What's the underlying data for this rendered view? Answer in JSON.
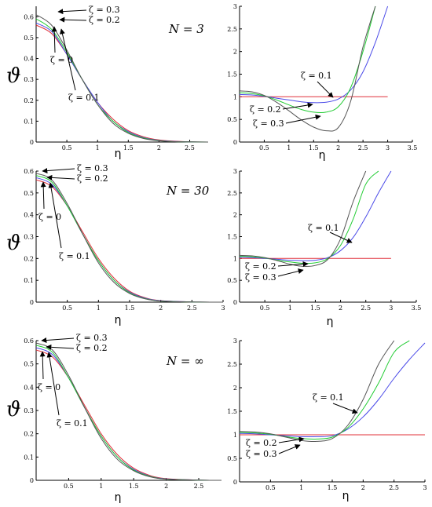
{
  "figure": {
    "y_label": "ϑ",
    "x_label": "η",
    "rows": [
      {
        "n_label": "N = 3"
      },
      {
        "n_label": "N = 30"
      },
      {
        "n_label": "N = ∞"
      }
    ]
  },
  "colors": {
    "zeta_0": "#e0303a",
    "zeta_0.1": "#4a4ae8",
    "zeta_0.2": "#22cc33",
    "zeta_0.3": "#555555"
  },
  "chart_data": [
    {
      "type": "line",
      "panel": "N = 3 left",
      "title": "",
      "xlabel": "η",
      "ylabel": "ϑ",
      "xlim": [
        0,
        2.8
      ],
      "ylim": [
        0,
        0.65
      ],
      "x_ticks": [
        0.5,
        1,
        1.5,
        2,
        2.5
      ],
      "y_ticks": [
        0,
        0.1,
        0.2,
        0.3,
        0.4,
        0.5,
        0.6
      ],
      "x": [
        0,
        0.25,
        0.5,
        0.75,
        1,
        1.25,
        1.5,
        1.75,
        2,
        2.25,
        2.5,
        2.8
      ],
      "series": [
        {
          "name": "ζ = 0",
          "values": [
            0.56,
            0.52,
            0.42,
            0.3,
            0.19,
            0.11,
            0.055,
            0.025,
            0.01,
            0.004,
            0.001,
            0
          ]
        },
        {
          "name": "ζ = 0.1",
          "values": [
            0.57,
            0.53,
            0.42,
            0.3,
            0.19,
            0.1,
            0.05,
            0.021,
            0.008,
            0.003,
            0.001,
            0
          ]
        },
        {
          "name": "ζ = 0.2",
          "values": [
            0.59,
            0.54,
            0.43,
            0.3,
            0.18,
            0.1,
            0.046,
            0.019,
            0.007,
            0.002,
            0.001,
            0
          ]
        },
        {
          "name": "ζ = 0.3",
          "values": [
            0.61,
            0.56,
            0.44,
            0.3,
            0.18,
            0.09,
            0.042,
            0.017,
            0.006,
            0.002,
            0.001,
            0
          ]
        }
      ],
      "annotations": [
        "ζ = 0.3",
        "ζ = 0.2",
        "ζ = 0",
        "ζ = 0.1"
      ]
    },
    {
      "type": "line",
      "panel": "N = 3 right",
      "title": "",
      "xlabel": "η",
      "ylabel": "",
      "xlim": [
        0,
        3.5
      ],
      "ylim": [
        0,
        3
      ],
      "x_ticks": [
        0.5,
        1,
        1.5,
        2,
        2.5,
        3,
        3.5
      ],
      "y_ticks": [
        0,
        0.5,
        1,
        1.5,
        2,
        2.5,
        3
      ],
      "x": [
        0,
        0.25,
        0.5,
        0.75,
        1,
        1.25,
        1.5,
        1.75,
        2,
        2.25,
        2.5,
        2.75,
        3
      ],
      "series": [
        {
          "name": "ζ = 0",
          "values": [
            1,
            1,
            1,
            1,
            1,
            1,
            1,
            1,
            1,
            1,
            1,
            1,
            1
          ]
        },
        {
          "name": "ζ = 0.1",
          "values": [
            1.05,
            1.04,
            1.01,
            0.97,
            0.93,
            0.89,
            0.87,
            0.88,
            0.95,
            1.15,
            1.55,
            2.2,
            3.0
          ]
        },
        {
          "name": "ζ = 0.2",
          "values": [
            1.09,
            1.07,
            1.02,
            0.93,
            0.82,
            0.72,
            0.66,
            0.66,
            0.78,
            1.2,
            2.0,
            3.0,
            null
          ]
        },
        {
          "name": "ζ = 0.3",
          "values": [
            1.13,
            1.11,
            1.03,
            0.88,
            0.69,
            0.49,
            0.33,
            0.25,
            0.32,
            0.9,
            2.1,
            3.0,
            null
          ]
        }
      ],
      "annotations": [
        "ζ = 0.1",
        "ζ = 0.2",
        "ζ = 0.3"
      ]
    },
    {
      "type": "line",
      "panel": "N = 30 left",
      "title": "",
      "xlabel": "η",
      "ylabel": "ϑ",
      "xlim": [
        0,
        3
      ],
      "ylim": [
        0,
        0.6
      ],
      "x_ticks": [
        0.5,
        1,
        1.5,
        2,
        2.5,
        3
      ],
      "y_ticks": [
        0,
        0.1,
        0.2,
        0.3,
        0.4,
        0.5,
        0.6
      ],
      "x": [
        0,
        0.25,
        0.5,
        0.75,
        1,
        1.25,
        1.5,
        1.75,
        2,
        2.5,
        3
      ],
      "series": [
        {
          "name": "ζ = 0",
          "values": [
            0.56,
            0.53,
            0.44,
            0.32,
            0.2,
            0.11,
            0.05,
            0.02,
            0.007,
            0.001,
            0
          ]
        },
        {
          "name": "ζ = 0.1",
          "values": [
            0.57,
            0.54,
            0.44,
            0.31,
            0.19,
            0.1,
            0.046,
            0.018,
            0.006,
            0.001,
            0
          ]
        },
        {
          "name": "ζ = 0.2",
          "values": [
            0.58,
            0.55,
            0.44,
            0.31,
            0.19,
            0.1,
            0.043,
            0.016,
            0.005,
            0.001,
            0
          ]
        },
        {
          "name": "ζ = 0.3",
          "values": [
            0.59,
            0.56,
            0.45,
            0.31,
            0.18,
            0.09,
            0.04,
            0.015,
            0.005,
            0.001,
            0
          ]
        }
      ],
      "annotations": [
        "ζ = 0.3",
        "ζ = 0.2",
        "ζ = 0",
        "ζ = 0.1"
      ]
    },
    {
      "type": "line",
      "panel": "N = 30 right",
      "title": "",
      "xlabel": "η",
      "ylabel": "",
      "xlim": [
        0,
        3.5
      ],
      "ylim": [
        0,
        3
      ],
      "x_ticks": [
        0.5,
        1,
        1.5,
        2,
        2.5,
        3,
        3.5
      ],
      "y_ticks": [
        0,
        0.5,
        1,
        1.5,
        2,
        2.5,
        3
      ],
      "x": [
        0,
        0.25,
        0.5,
        0.75,
        1,
        1.25,
        1.5,
        1.75,
        2,
        2.25,
        2.5,
        2.75,
        3
      ],
      "series": [
        {
          "name": "ζ = 0",
          "values": [
            1,
            1,
            1,
            1,
            1,
            1,
            1,
            1,
            1,
            1,
            1,
            1,
            1
          ]
        },
        {
          "name": "ζ = 0.1",
          "values": [
            1.03,
            1.02,
            1.0,
            0.98,
            0.96,
            0.95,
            0.96,
            1.02,
            1.18,
            1.48,
            1.95,
            2.5,
            3.0
          ]
        },
        {
          "name": "ζ = 0.2",
          "values": [
            1.05,
            1.04,
            1.01,
            0.96,
            0.92,
            0.89,
            0.9,
            1.0,
            1.3,
            1.9,
            2.7,
            3.0,
            null
          ]
        },
        {
          "name": "ζ = 0.3",
          "values": [
            1.07,
            1.06,
            1.02,
            0.95,
            0.87,
            0.82,
            0.84,
            0.98,
            1.45,
            2.3,
            3.0,
            null,
            null
          ]
        }
      ],
      "annotations": [
        "ζ = 0.1",
        "ζ = 0.2",
        "ζ = 0.3"
      ]
    },
    {
      "type": "line",
      "panel": "N = ∞ left",
      "title": "",
      "xlabel": "η",
      "ylabel": "ϑ",
      "xlim": [
        0,
        2.85
      ],
      "ylim": [
        0,
        0.6
      ],
      "x_ticks": [
        0.5,
        1,
        1.5,
        2,
        2.5
      ],
      "y_ticks": [
        0,
        0.1,
        0.2,
        0.3,
        0.4,
        0.5,
        0.6
      ],
      "x": [
        0,
        0.25,
        0.5,
        0.75,
        1,
        1.25,
        1.5,
        1.75,
        2,
        2.5,
        2.85
      ],
      "series": [
        {
          "name": "ζ = 0",
          "values": [
            0.56,
            0.53,
            0.44,
            0.32,
            0.2,
            0.11,
            0.052,
            0.021,
            0.007,
            0.001,
            0
          ]
        },
        {
          "name": "ζ = 0.1",
          "values": [
            0.57,
            0.54,
            0.44,
            0.31,
            0.19,
            0.1,
            0.047,
            0.018,
            0.006,
            0.001,
            0
          ]
        },
        {
          "name": "ζ = 0.2",
          "values": [
            0.58,
            0.55,
            0.44,
            0.31,
            0.19,
            0.1,
            0.044,
            0.017,
            0.005,
            0.001,
            0
          ]
        },
        {
          "name": "ζ = 0.3",
          "values": [
            0.59,
            0.56,
            0.45,
            0.31,
            0.18,
            0.09,
            0.041,
            0.015,
            0.005,
            0.001,
            0
          ]
        }
      ],
      "annotations": [
        "ζ = 0.3",
        "ζ = 0.2",
        "ζ = 0",
        "ζ = 0.1"
      ]
    },
    {
      "type": "line",
      "panel": "N = ∞ right",
      "title": "",
      "xlabel": "η",
      "ylabel": "",
      "xlim": [
        0,
        3
      ],
      "ylim": [
        0,
        3
      ],
      "x_ticks": [
        0.5,
        1,
        1.5,
        2,
        2.5,
        3
      ],
      "y_ticks": [
        0,
        0.5,
        1,
        1.5,
        2,
        2.5,
        3
      ],
      "x": [
        0,
        0.25,
        0.5,
        0.75,
        1,
        1.25,
        1.5,
        1.75,
        2,
        2.25,
        2.5,
        2.75,
        3
      ],
      "series": [
        {
          "name": "ζ = 0",
          "values": [
            1,
            1,
            1,
            1,
            1,
            1,
            1,
            1,
            1,
            1,
            1,
            1,
            1
          ]
        },
        {
          "name": "ζ = 0.1",
          "values": [
            1.03,
            1.02,
            1.0,
            0.98,
            0.96,
            0.96,
            0.98,
            1.12,
            1.38,
            1.75,
            2.2,
            2.6,
            2.95
          ]
        },
        {
          "name": "ζ = 0.2",
          "values": [
            1.05,
            1.04,
            1.01,
            0.96,
            0.92,
            0.91,
            0.95,
            1.15,
            1.55,
            2.1,
            2.75,
            3.0,
            null
          ]
        },
        {
          "name": "ζ = 0.3",
          "values": [
            1.07,
            1.06,
            1.02,
            0.95,
            0.88,
            0.86,
            0.92,
            1.2,
            1.75,
            2.5,
            3.0,
            null,
            null
          ]
        }
      ],
      "annotations": [
        "ζ = 0.1",
        "ζ = 0.2",
        "ζ = 0.3"
      ]
    }
  ]
}
